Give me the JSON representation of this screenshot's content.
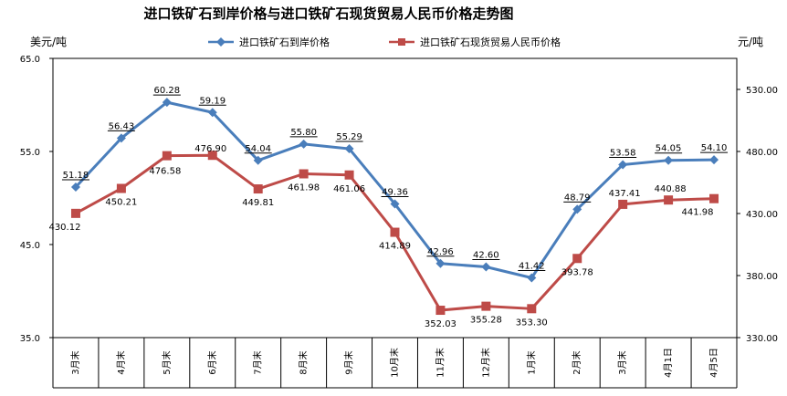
{
  "chart_data": {
    "type": "line",
    "title": "进口铁矿石到岸价格与进口铁矿石现货贸易人民币价格走势图",
    "ylabel_left": "美元/吨",
    "ylabel_right": "元/吨",
    "categories": [
      "3月末",
      "4月末",
      "5月末",
      "6月末",
      "7月末",
      "8月末",
      "9月末",
      "10月末",
      "11月末",
      "12月末",
      "1月末",
      "2月末",
      "3月末",
      "4月1日",
      "4月5日"
    ],
    "ylim_left": [
      35.0,
      65.0
    ],
    "yticks_left": [
      "65.0",
      "55.0",
      "45.0",
      "35.0"
    ],
    "ylim_right": [
      330.0,
      555.0
    ],
    "yticks_right": [
      "530.00",
      "480.00",
      "430.00",
      "380.00",
      "330.00"
    ],
    "grid": false,
    "legend": "top",
    "series": [
      {
        "name": "进口铁矿石到岸价格",
        "axis": "left",
        "color": "#4A7EBB",
        "marker": "diamond",
        "values": [
          51.18,
          56.43,
          60.28,
          59.19,
          54.04,
          55.8,
          55.29,
          49.36,
          42.96,
          42.6,
          41.42,
          48.79,
          53.58,
          54.05,
          54.1
        ],
        "labels": [
          "51.18",
          "56.43",
          "60.28",
          "59.19",
          "54.04",
          "55.80",
          "55.29",
          "49.36",
          "42.96",
          "42.60",
          "41.42",
          "48.79",
          "53.58",
          "54.05",
          "54.10"
        ]
      },
      {
        "name": "进口铁矿石现货贸易人民币价格",
        "axis": "right",
        "color": "#BE4B48",
        "marker": "square",
        "values": [
          430.12,
          450.21,
          476.58,
          476.9,
          449.81,
          461.98,
          461.06,
          414.89,
          352.03,
          355.28,
          353.3,
          393.78,
          437.41,
          440.88,
          441.98
        ],
        "labels": [
          "430.12",
          "450.21",
          "476.58",
          "476.90",
          "449.81",
          "461.98",
          "461.06",
          "414.89",
          "352.03",
          "355.28",
          "353.30",
          "393.78",
          "437.41",
          "440.88",
          "441.98"
        ]
      }
    ]
  }
}
